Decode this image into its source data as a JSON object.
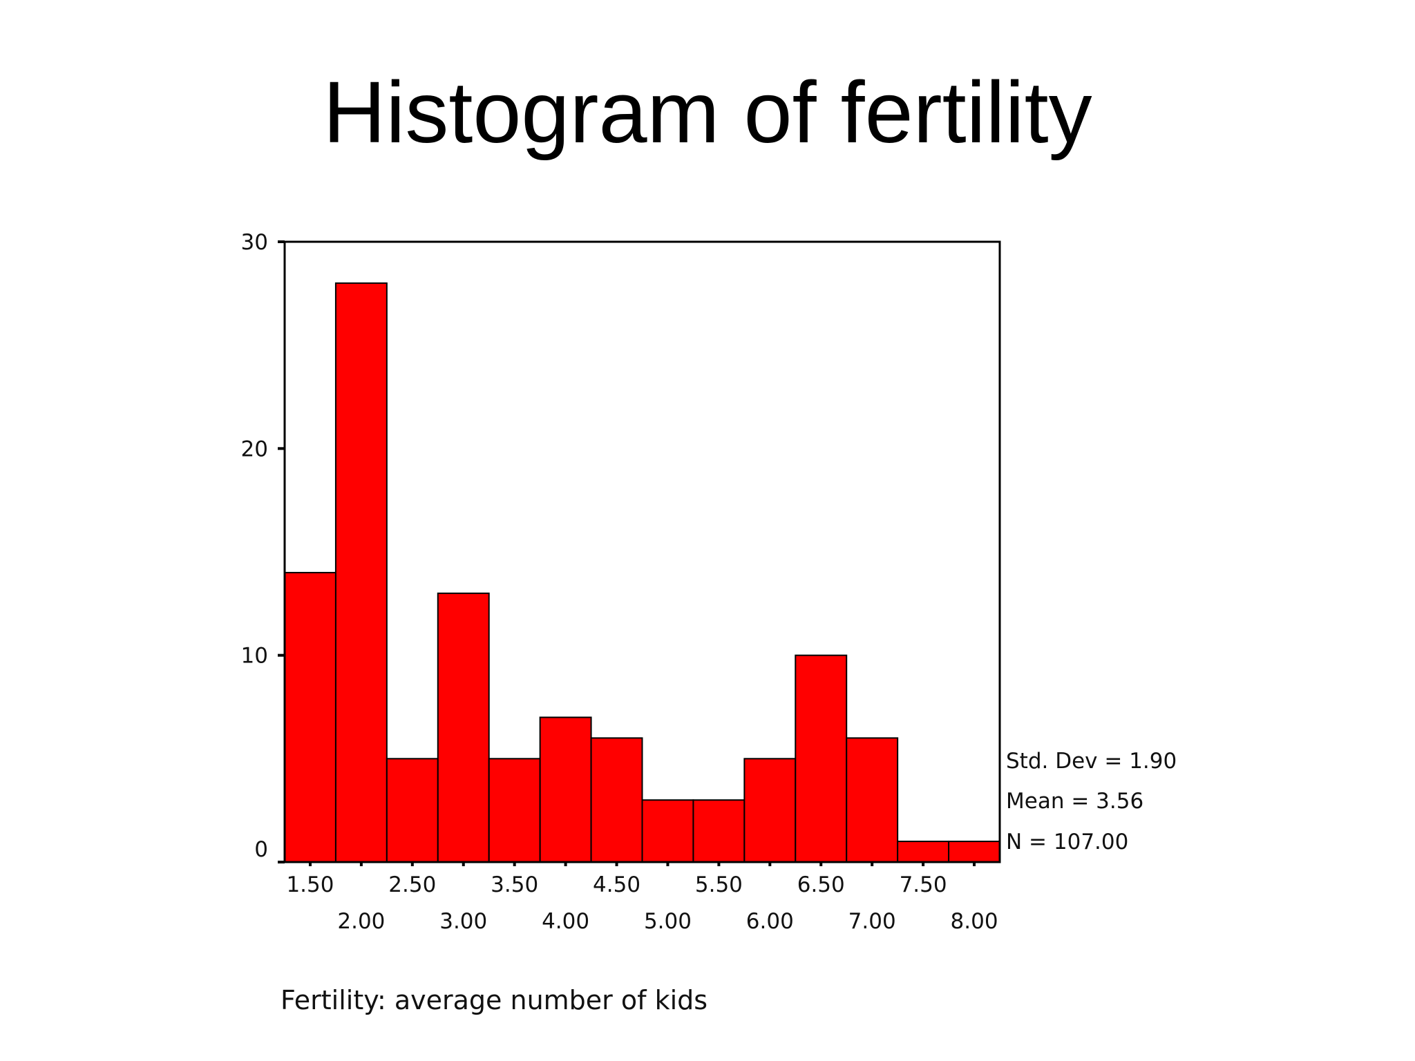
{
  "slide": {
    "title": "Histogram of fertility"
  },
  "chart_data": {
    "type": "bar",
    "title": "",
    "xlabel": "Fertility: average number of kids",
    "ylabel": "",
    "ylim": [
      0,
      30
    ],
    "yticks": [
      "0",
      "10",
      "20",
      "30"
    ],
    "bin_width": 0.5,
    "x_tick_labels_row1": [
      "1.50",
      "2.50",
      "3.50",
      "4.50",
      "5.50",
      "6.50",
      "7.50"
    ],
    "x_tick_labels_row2": [
      "2.00",
      "3.00",
      "4.00",
      "5.00",
      "6.00",
      "7.00",
      "8.00"
    ],
    "categories": [
      "1.50",
      "2.00",
      "2.50",
      "3.00",
      "3.50",
      "4.00",
      "4.50",
      "5.00",
      "5.50",
      "6.00",
      "6.50",
      "7.00",
      "7.50",
      "8.00"
    ],
    "values": [
      14,
      28,
      5,
      13,
      5,
      7,
      6,
      3,
      3,
      5,
      10,
      6,
      1,
      1
    ],
    "bar_color": "#ff0000",
    "grid": false,
    "stats": {
      "std_dev": "Std. Dev = 1.90",
      "mean": "Mean = 3.56",
      "n": "N = 107.00"
    }
  }
}
